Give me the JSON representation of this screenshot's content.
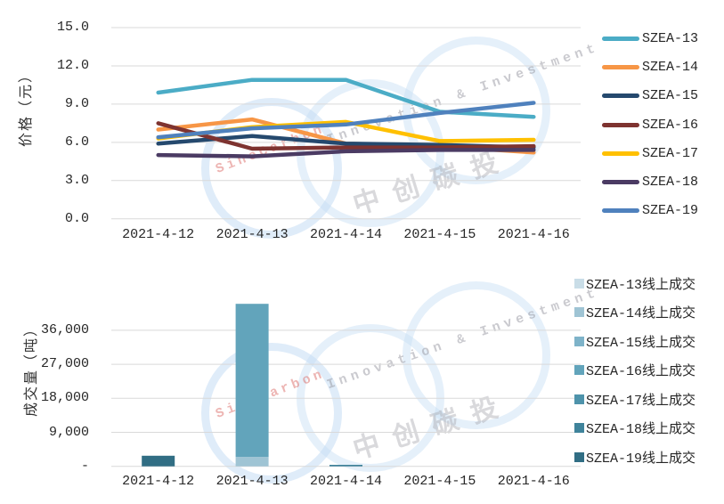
{
  "watermark": {
    "brand": "SinoCarbon",
    "tagline": "Innovation & Investment",
    "cjk": "中创碳投"
  },
  "chart_data": [
    {
      "type": "line",
      "title": "",
      "y_axis_title": "价格（元）",
      "x_labels": [
        "2021-4-12",
        "2021-4-13",
        "2021-4-14",
        "2021-4-15",
        "2021-4-16"
      ],
      "y_ticks": [
        "15.0",
        "12.0",
        "9.0",
        "6.0",
        "3.0",
        "0.0"
      ],
      "y_tick_values": [
        15,
        12,
        9,
        6,
        3,
        0
      ],
      "ylim": [
        0,
        15
      ],
      "grid": "horizontal",
      "legend_position": "right",
      "series": [
        {
          "name": "SZEA-13",
          "color": "#4BACC6",
          "values": [
            9.9,
            10.9,
            10.9,
            8.4,
            8.0
          ]
        },
        {
          "name": "SZEA-14",
          "color": "#F79646",
          "values": [
            7.0,
            7.8,
            5.9,
            5.7,
            5.2
          ]
        },
        {
          "name": "SZEA-15",
          "color": "#25496E",
          "values": [
            5.9,
            6.5,
            5.9,
            5.8,
            5.6
          ]
        },
        {
          "name": "SZEA-16",
          "color": "#7E3330",
          "values": [
            7.5,
            5.5,
            5.6,
            5.6,
            5.7
          ]
        },
        {
          "name": "SZEA-17",
          "color": "#FFC000",
          "values": [
            6.3,
            7.2,
            7.6,
            6.1,
            6.2
          ]
        },
        {
          "name": "SZEA-18",
          "color": "#4B3B63",
          "values": [
            5.0,
            4.9,
            5.3,
            5.4,
            5.4
          ]
        },
        {
          "name": "SZEA-19",
          "color": "#4F81BD",
          "values": [
            6.4,
            7.1,
            7.4,
            8.3,
            9.1
          ]
        }
      ]
    },
    {
      "type": "bar",
      "stacked": true,
      "title": "",
      "y_axis_title": "成交量（吨）",
      "x_labels": [
        "2021-4-12",
        "2021-4-13",
        "2021-4-14",
        "2021-4-15",
        "2021-4-16"
      ],
      "y_ticks": [
        "36,000",
        "27,000",
        "18,000",
        "9,000",
        "-"
      ],
      "y_tick_values": [
        36000,
        27000,
        18000,
        9000,
        0
      ],
      "ylim": [
        0,
        45000
      ],
      "grid": "horizontal",
      "legend_position": "right",
      "series": [
        {
          "name": "SZEA-13线上成交",
          "color": "#C9DDE7",
          "values": [
            0,
            0,
            0,
            0,
            0
          ]
        },
        {
          "name": "SZEA-14线上成交",
          "color": "#9FC4D4",
          "values": [
            0,
            2500,
            0,
            0,
            0
          ]
        },
        {
          "name": "SZEA-15线上成交",
          "color": "#7EB3C9",
          "values": [
            0,
            0,
            0,
            0,
            0
          ]
        },
        {
          "name": "SZEA-16线上成交",
          "color": "#62A4BB",
          "values": [
            0,
            40500,
            0,
            0,
            0
          ]
        },
        {
          "name": "SZEA-17线上成交",
          "color": "#4E93AB",
          "values": [
            0,
            0,
            0,
            0,
            0
          ]
        },
        {
          "name": "SZEA-18线上成交",
          "color": "#3F839B",
          "values": [
            0,
            0,
            400,
            0,
            0
          ]
        },
        {
          "name": "SZEA-19线上成交",
          "color": "#316E84",
          "values": [
            2800,
            0,
            0,
            0,
            0
          ]
        }
      ]
    }
  ]
}
